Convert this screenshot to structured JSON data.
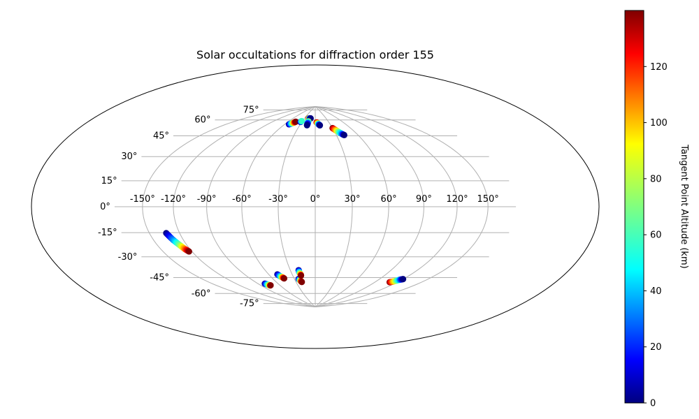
{
  "chart_data": {
    "type": "scatter",
    "projection": "Hammer-Aitoff (all-sky)",
    "title": "Solar occultations for diffraction order 155",
    "xlabel": "",
    "ylabel": "",
    "grid": true,
    "longitude_ticks": [
      "-150°",
      "-120°",
      "-90°",
      "-60°",
      "-30°",
      "0°",
      "30°",
      "60°",
      "90°",
      "120°",
      "150°"
    ],
    "latitude_ticks": [
      "75°",
      "60°",
      "45°",
      "30°",
      "15°",
      "0°",
      "-15°",
      "-30°",
      "-45°",
      "-60°",
      "-75°"
    ],
    "colorbar": {
      "label": "Tangent Point Altitude (km)",
      "colormap": "jet",
      "range": [
        0,
        140
      ],
      "ticks": [
        "0",
        "20",
        "40",
        "60",
        "80",
        "100",
        "120"
      ]
    },
    "series": [
      {
        "lon": [
          -133,
          -130,
          -127,
          -125,
          -123
        ],
        "lat": [
          -18,
          -23,
          -27,
          -30,
          -32
        ],
        "altitude": [
          0,
          35,
          70,
          105,
          140
        ]
      },
      {
        "lon": [
          -80,
          -78,
          -76,
          -75
        ],
        "lat": [
          -63,
          -64,
          -65,
          -65
        ],
        "altitude": [
          0,
          45,
          95,
          140
        ]
      },
      {
        "lon": [
          -49,
          -47,
          -45,
          -44
        ],
        "lat": [
          -56,
          -58,
          -59,
          -60
        ],
        "altitude": [
          0,
          45,
          95,
          140
        ]
      },
      {
        "lon": [
          -24,
          -23,
          -22,
          -21
        ],
        "lat": [
          -61,
          -62,
          -63,
          -64
        ],
        "altitude": [
          0,
          45,
          95,
          140
        ]
      },
      {
        "lon": [
          -20,
          -20,
          -19,
          -19
        ],
        "lat": [
          -53,
          -55,
          -57,
          -58
        ],
        "altitude": [
          0,
          45,
          95,
          140
        ]
      },
      {
        "lon": [
          110,
          113,
          117,
          120
        ],
        "lat": [
          -59,
          -58,
          -56,
          -55
        ],
        "altitude": [
          140,
          100,
          45,
          0
        ]
      },
      {
        "lon": [
          -52,
          -49,
          -46,
          -44
        ],
        "lat": [
          70,
          71,
          72,
          73
        ],
        "altitude": [
          0,
          45,
          95,
          140
        ]
      },
      {
        "lon": [
          -33,
          -32
        ],
        "lat": [
          73,
          74
        ],
        "altitude": [
          0,
          60
        ]
      },
      {
        "lon": [
          -19,
          -17,
          -15,
          -13
        ],
        "lat": [
          77,
          77,
          77,
          77
        ],
        "altitude": [
          140,
          80,
          30,
          0
        ]
      },
      {
        "lon": [
          -16,
          -16,
          -16
        ],
        "lat": [
          74,
          72,
          70
        ],
        "altitude": [
          80,
          30,
          0
        ]
      },
      {
        "lon": [
          3,
          5,
          7,
          9
        ],
        "lat": [
          73,
          72,
          71,
          70
        ],
        "altitude": [
          140,
          95,
          45,
          0
        ]
      },
      {
        "lon": [
          30,
          33,
          36,
          39,
          41
        ],
        "lat": [
          67,
          65,
          63,
          61,
          60
        ],
        "altitude": [
          140,
          105,
          70,
          35,
          0
        ]
      }
    ]
  }
}
